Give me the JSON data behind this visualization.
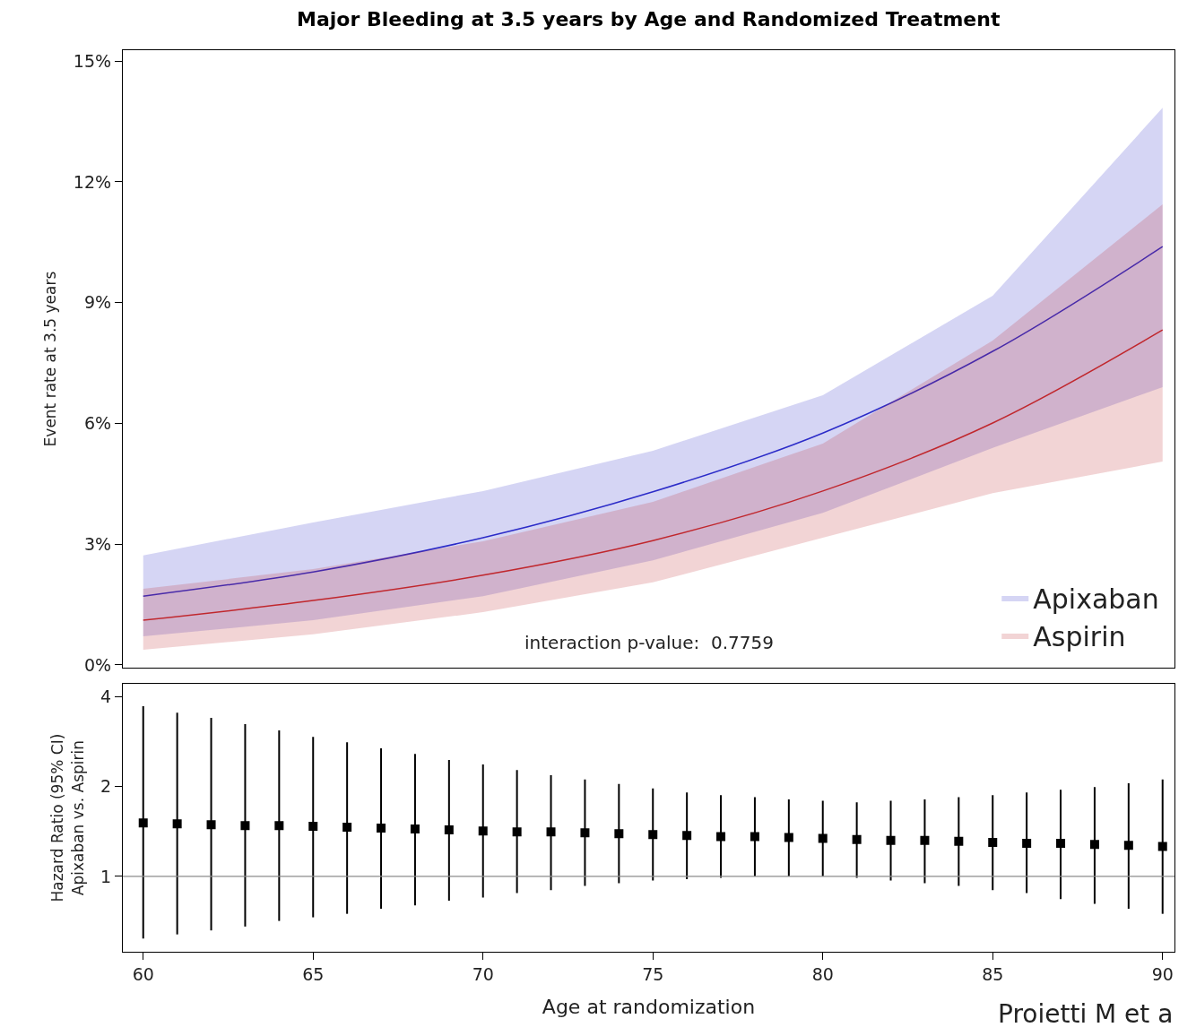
{
  "chart_data": [
    {
      "type": "line",
      "title": "Major Bleeding at 3.5 years by Age and Randomized Treatment",
      "ylabel": "Event rate at 3.5 years",
      "x": [
        60,
        65,
        70,
        75,
        80,
        85,
        90
      ],
      "series": [
        {
          "name": "Apixaban",
          "color": "#2b2bc8",
          "values": [
            1.71,
            2.31,
            3.16,
            4.3,
            5.76,
            7.79,
            10.39
          ],
          "lower": [
            0.71,
            1.11,
            1.71,
            2.6,
            3.78,
            5.39,
            6.9
          ],
          "upper": [
            2.72,
            3.54,
            4.32,
            5.32,
            6.7,
            9.17,
            13.84
          ]
        },
        {
          "name": "Aspirin",
          "color": "#c0272d",
          "values": [
            1.11,
            1.6,
            2.23,
            3.09,
            4.32,
            6.01,
            8.32
          ],
          "lower": [
            0.38,
            0.76,
            1.31,
            2.05,
            3.16,
            4.27,
            5.05
          ],
          "upper": [
            1.89,
            2.38,
            3.07,
            4.05,
            5.5,
            8.06,
            11.44
          ]
        }
      ],
      "xlim": [
        59.4,
        90.35
      ],
      "xticks": [
        60,
        65,
        70,
        75,
        80,
        85,
        90
      ],
      "ylim": [
        -0.07,
        15.27
      ],
      "yticks": [
        {
          "value": 0,
          "label": "0%"
        },
        {
          "value": 3,
          "label": "3%"
        },
        {
          "value": 6,
          "label": "6%"
        },
        {
          "value": 9,
          "label": "9%"
        },
        {
          "value": 12,
          "label": "12%"
        },
        {
          "value": 15,
          "label": "15%"
        }
      ],
      "tick_labels": "y",
      "legend": "bottom right",
      "annotations": [
        "interaction p-value:  0.7759"
      ]
    },
    {
      "type": "scatter",
      "xlabel": "Age at randomization",
      "ylabel": "Hazard Ratio (95% CI)\nApixaban vs. Aspirin",
      "marker": "square",
      "log": "y",
      "x": [
        60,
        61,
        62,
        63,
        64,
        65,
        66,
        67,
        68,
        69,
        70,
        71,
        72,
        73,
        74,
        75,
        76,
        77,
        78,
        79,
        80,
        81,
        82,
        83,
        84,
        85,
        86,
        87,
        88,
        89,
        90
      ],
      "series": [
        {
          "color": "#000000",
          "values": [
            1.51,
            1.5,
            1.49,
            1.48,
            1.48,
            1.47,
            1.46,
            1.45,
            1.44,
            1.43,
            1.42,
            1.41,
            1.41,
            1.4,
            1.39,
            1.38,
            1.37,
            1.36,
            1.36,
            1.35,
            1.34,
            1.33,
            1.32,
            1.32,
            1.31,
            1.3,
            1.29,
            1.29,
            1.28,
            1.27,
            1.26
          ],
          "errors": [
            [
              0.62,
              3.71
            ],
            [
              0.64,
              3.53
            ],
            [
              0.66,
              3.39
            ],
            [
              0.68,
              3.23
            ],
            [
              0.71,
              3.08
            ],
            [
              0.73,
              2.93
            ],
            [
              0.75,
              2.81
            ],
            [
              0.78,
              2.68
            ],
            [
              0.8,
              2.57
            ],
            [
              0.83,
              2.45
            ],
            [
              0.85,
              2.37
            ],
            [
              0.88,
              2.27
            ],
            [
              0.9,
              2.18
            ],
            [
              0.93,
              2.11
            ],
            [
              0.95,
              2.04
            ],
            [
              0.97,
              1.97
            ],
            [
              0.98,
              1.91
            ],
            [
              0.99,
              1.87
            ],
            [
              1.0,
              1.84
            ],
            [
              1.0,
              1.81
            ],
            [
              1.0,
              1.79
            ],
            [
              0.99,
              1.77
            ],
            [
              0.97,
              1.79
            ],
            [
              0.95,
              1.81
            ],
            [
              0.93,
              1.84
            ],
            [
              0.9,
              1.87
            ],
            [
              0.88,
              1.91
            ],
            [
              0.84,
              1.95
            ],
            [
              0.81,
              1.99
            ],
            [
              0.78,
              2.05
            ],
            [
              0.75,
              2.11
            ]
          ]
        }
      ],
      "xlim": [
        59.4,
        90.35
      ],
      "xticks": [
        60,
        65,
        70,
        75,
        80,
        85,
        90
      ],
      "ylim": [
        0.56,
        4.4
      ],
      "yticks": [
        1,
        2,
        4
      ],
      "ref_lines": [
        {
          "axis": "y",
          "value": 1,
          "color": "#8c8c8c"
        }
      ],
      "annotations": [
        "Proietti M et a"
      ]
    }
  ]
}
